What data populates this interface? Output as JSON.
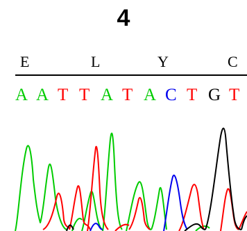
{
  "panel": {
    "number": "4"
  },
  "amino_acids": [
    "E",
    "L",
    "Y",
    "C"
  ],
  "nucleotides": [
    "A",
    "A",
    "T",
    "T",
    "A",
    "T",
    "A",
    "C",
    "T",
    "G",
    "T"
  ],
  "base_colors": {
    "A": "#00cc00",
    "T": "#ff0000",
    "C": "#0000ee",
    "G": "#000000"
  }
}
